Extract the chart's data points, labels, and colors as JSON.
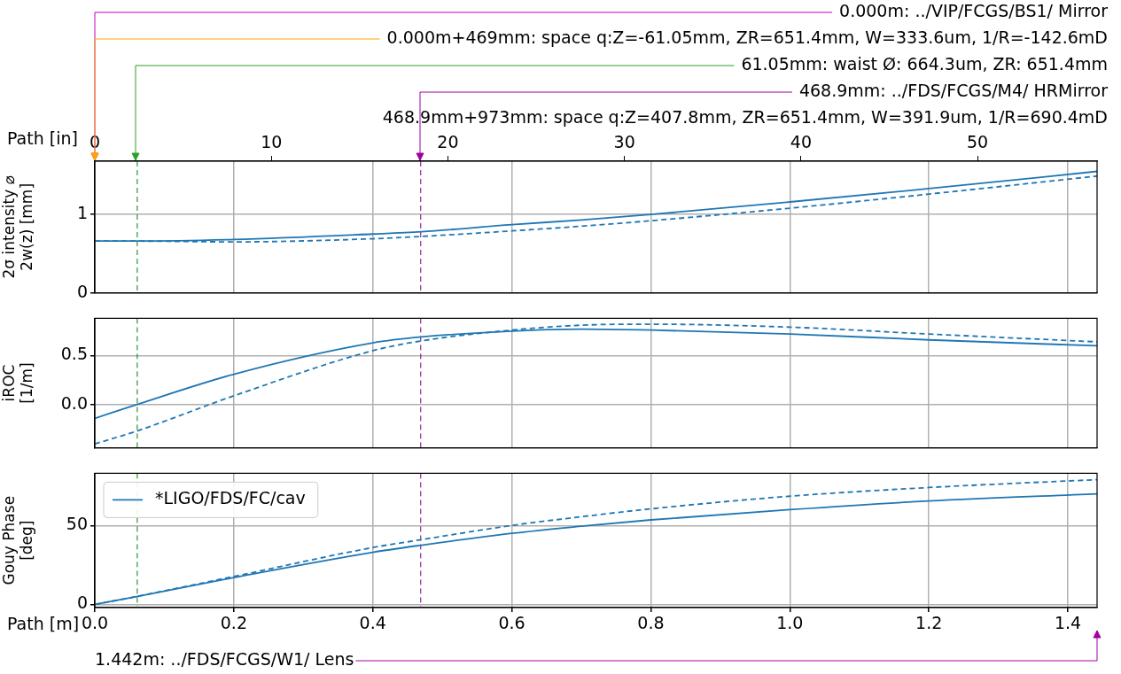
{
  "chart_data": [
    {
      "type": "line",
      "ylabel": "2σ intensity ⌀\n2w(z) [mm]",
      "x2label": "Path [in]",
      "x": [
        0,
        0.06,
        0.2,
        0.4,
        0.47,
        0.6,
        0.7,
        0.8,
        1.0,
        1.2,
        1.442
      ],
      "series": [
        {
          "color": "#1f77b4",
          "values": [
            0.66,
            0.66,
            0.68,
            0.75,
            0.78,
            0.87,
            0.93,
            1.0,
            1.16,
            1.33,
            1.55
          ]
        },
        {
          "color": "#1f77b4",
          "line_style": "dashed",
          "values": [
            0.66,
            0.66,
            0.65,
            0.69,
            0.72,
            0.79,
            0.85,
            0.92,
            1.08,
            1.26,
            1.49
          ]
        }
      ],
      "xlim": [
        0,
        1.442
      ],
      "xticks": [
        0,
        0.2,
        0.4,
        0.6,
        0.8,
        1,
        1.2,
        1.4
      ],
      "x2lim": [
        0,
        56.77
      ],
      "x2ticks": [
        0,
        10,
        20,
        30,
        40,
        50
      ],
      "ylim": [
        0,
        1.68
      ],
      "yticks": [
        0,
        1
      ],
      "tick_labels": "y",
      "grid": true,
      "ref_lines": [
        {
          "axis": "x",
          "value": 0.06105,
          "color": "#008000",
          "line_style": "dashed"
        },
        {
          "axis": "x",
          "value": 0.4689,
          "color": "#800080",
          "line_style": "dashed"
        }
      ],
      "annotations": [
        "0.000m: ../VIP/FCGS/BS1/ Mirror",
        "0.000m+469mm: space q:Z=-61.05mm, ZR=651.4mm, W=333.6um, 1/R=-142.6mD",
        "61.05mm: waist Ø: 664.3um, ZR: 651.4mm",
        "468.9mm: ../FDS/FCGS/M4/ HRMirror",
        "468.9mm+973mm: space q:Z=407.8mm, ZR=651.4mm, W=391.9um, 1/R=690.4mD"
      ]
    },
    {
      "type": "line",
      "ylabel": "iROC\n[1/m]",
      "x": [
        0,
        0.06,
        0.2,
        0.4,
        0.47,
        0.6,
        0.7,
        0.8,
        1.0,
        1.2,
        1.442
      ],
      "series": [
        {
          "color": "#1f77b4",
          "values": [
            -0.14,
            0.0,
            0.31,
            0.63,
            0.69,
            0.75,
            0.77,
            0.76,
            0.72,
            0.66,
            0.6
          ]
        },
        {
          "color": "#1f77b4",
          "line_style": "dashed",
          "values": [
            -0.4,
            -0.27,
            0.09,
            0.55,
            0.65,
            0.76,
            0.81,
            0.82,
            0.79,
            0.72,
            0.64
          ]
        }
      ],
      "xlim": [
        0,
        1.442
      ],
      "xticks": [
        0,
        0.2,
        0.4,
        0.6,
        0.8,
        1,
        1.2,
        1.4
      ],
      "ylim": [
        -0.44,
        0.88
      ],
      "yticks": [
        {
          "value": 0,
          "label": "0.0"
        },
        0.5
      ],
      "tick_labels": "y",
      "grid": true,
      "ref_lines": [
        {
          "axis": "x",
          "value": 0.06105,
          "color": "#008000",
          "line_style": "dashed"
        },
        {
          "axis": "x",
          "value": 0.4689,
          "color": "#800080",
          "line_style": "dashed"
        }
      ]
    },
    {
      "type": "line",
      "ylabel": "Gouy Phase\n[deg]",
      "xlabel": "Path [m]",
      "x": [
        0,
        0.06,
        0.2,
        0.4,
        0.47,
        0.6,
        0.7,
        0.8,
        1.0,
        1.2,
        1.442
      ],
      "series": [
        {
          "name": "*LIGO/FDS/FC/cav",
          "color": "#1f77b4",
          "values": [
            0,
            5,
            17,
            33,
            37.5,
            45,
            49.5,
            53.5,
            60,
            65.5,
            70
          ]
        },
        {
          "color": "#1f77b4",
          "line_style": "dashed",
          "values": [
            0,
            5,
            17.7,
            36,
            41,
            50,
            55.5,
            60.5,
            68.5,
            74,
            79
          ]
        }
      ],
      "xlim": [
        0,
        1.442
      ],
      "xticks": [
        {
          "value": 0,
          "label": "0.0"
        },
        0.2,
        0.4,
        0.6,
        0.8,
        {
          "value": 1,
          "label": "1.0"
        },
        1.2,
        1.4
      ],
      "ylim": [
        -2,
        83
      ],
      "yticks": [
        0,
        50
      ],
      "grid": true,
      "legend": "top left",
      "ref_lines": [
        {
          "axis": "x",
          "value": 0.06105,
          "color": "#008000",
          "line_style": "dashed"
        },
        {
          "axis": "x",
          "value": 0.4689,
          "color": "#800080",
          "line_style": "dashed"
        }
      ],
      "annotations": [
        "1.442m: ../FDS/FCGS/W1/ Lens"
      ]
    }
  ]
}
